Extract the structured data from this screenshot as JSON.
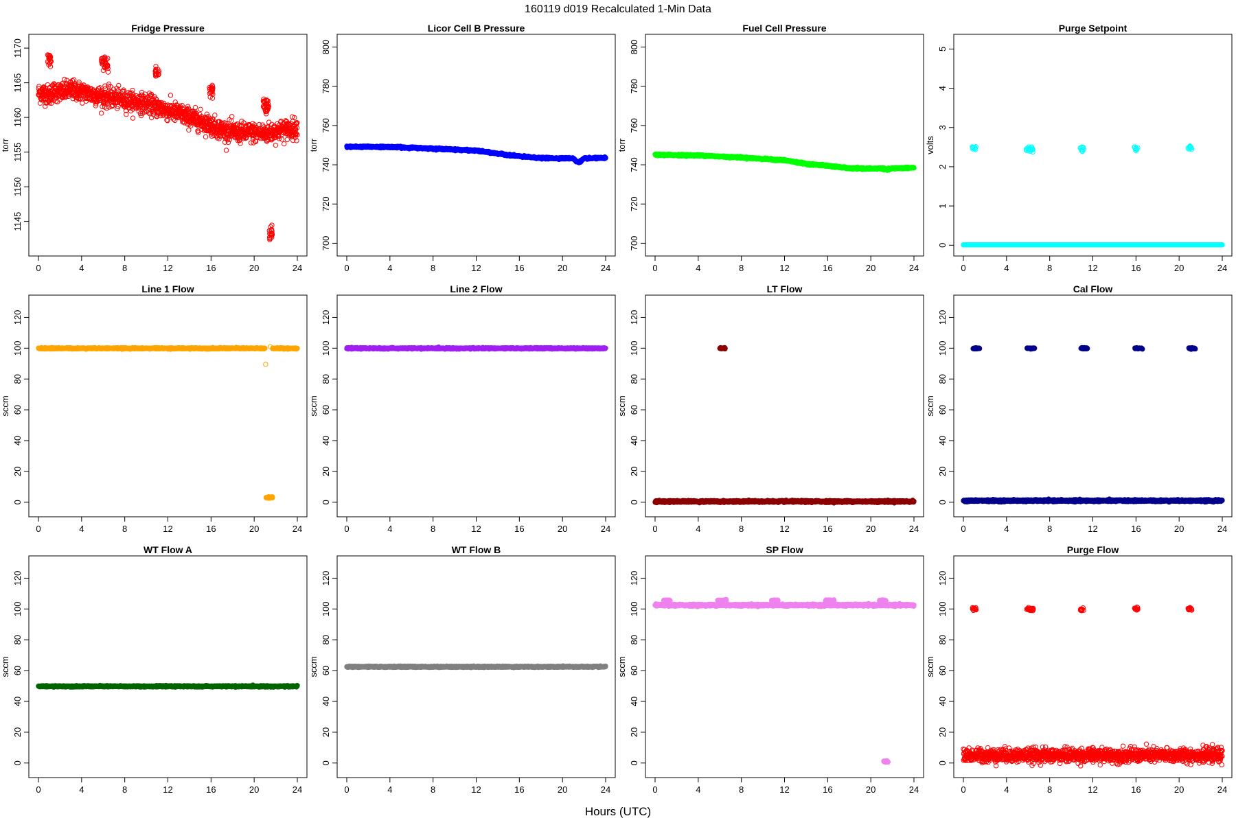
{
  "page_title": "160119    d019   Recalculated 1-Min Data",
  "x_axis_label": "Hours (UTC)",
  "chart_data": [
    {
      "type": "scatter",
      "title": "Fridge Pressure",
      "ylabel": "torr",
      "color": "#ff0000",
      "point_style": "open",
      "xlim": [
        0,
        24
      ],
      "ylim": [
        1141,
        1171
      ],
      "xticks": [
        0,
        4,
        8,
        12,
        16,
        20,
        24
      ],
      "yticks": [
        1145,
        1150,
        1155,
        1160,
        1165,
        1170
      ],
      "series": [
        {
          "name": "main",
          "points": [
            [
              0,
              1163.5
            ],
            [
              0.5,
              1163.5
            ],
            [
              1,
              1163.2
            ],
            [
              1.5,
              1163.8
            ],
            [
              2,
              1163.6
            ],
            [
              3,
              1164
            ],
            [
              4,
              1163.7
            ],
            [
              5,
              1163.3
            ],
            [
              6,
              1163
            ],
            [
              7,
              1162.8
            ],
            [
              8,
              1162.5
            ],
            [
              9,
              1162.2
            ],
            [
              10,
              1162
            ],
            [
              11,
              1161.5
            ],
            [
              12,
              1161
            ],
            [
              13,
              1160.6
            ],
            [
              14,
              1160
            ],
            [
              15,
              1159.5
            ],
            [
              16,
              1158.9
            ],
            [
              17,
              1158.2
            ],
            [
              18,
              1157.9
            ],
            [
              19,
              1157.8
            ],
            [
              20,
              1157.8
            ],
            [
              21,
              1157.7
            ],
            [
              22,
              1158
            ],
            [
              23,
              1158.3
            ],
            [
              24,
              1158.5
            ]
          ],
          "scatter": 0.7
        },
        {
          "name": "excursions",
          "points": [
            [
              1,
              1168.3
            ],
            [
              6,
              1168.2
            ],
            [
              6.3,
              1167.5
            ],
            [
              11,
              1166.4
            ],
            [
              16,
              1163.7
            ],
            [
              21,
              1162
            ],
            [
              21.2,
              1161.5
            ],
            [
              21.5,
              1143.5
            ]
          ],
          "scatter": 0.5,
          "count": 18
        }
      ]
    },
    {
      "type": "scatter",
      "title": "Licor Cell B Pressure",
      "ylabel": "torr",
      "color": "#0000ff",
      "point_style": "filled",
      "xlim": [
        0,
        24
      ],
      "ylim": [
        697,
        803
      ],
      "xticks": [
        0,
        4,
        8,
        12,
        16,
        20,
        24
      ],
      "yticks": [
        700,
        720,
        740,
        760,
        780,
        800
      ],
      "series": [
        {
          "name": "main",
          "points": [
            [
              0,
              749.2
            ],
            [
              4,
              749.1
            ],
            [
              8,
              748.3
            ],
            [
              12,
              747.2
            ],
            [
              14,
              745.7
            ],
            [
              16,
              744.3
            ],
            [
              18,
              743.4
            ],
            [
              20,
              743.3
            ],
            [
              21,
              743.3
            ],
            [
              21.3,
              741.5
            ],
            [
              21.6,
              741.5
            ],
            [
              22,
              743.2
            ],
            [
              24,
              743.5
            ]
          ],
          "scatter": 0.2
        }
      ]
    },
    {
      "type": "scatter",
      "title": "Fuel Cell Pressure",
      "ylabel": "torr",
      "color": "#00ff00",
      "point_style": "filled",
      "xlim": [
        0,
        24
      ],
      "ylim": [
        697,
        803
      ],
      "xticks": [
        0,
        4,
        8,
        12,
        16,
        20,
        24
      ],
      "yticks": [
        700,
        720,
        740,
        760,
        780,
        800
      ],
      "series": [
        {
          "name": "main",
          "points": [
            [
              0,
              745.1
            ],
            [
              4,
              744.8
            ],
            [
              8,
              743.7
            ],
            [
              12,
              742.3
            ],
            [
              14,
              740.5
            ],
            [
              16,
              739.5
            ],
            [
              18,
              738.2
            ],
            [
              20,
              738
            ],
            [
              21,
              738.2
            ],
            [
              21.5,
              737.5
            ],
            [
              22,
              738.2
            ],
            [
              24,
              738.5
            ]
          ],
          "scatter": 0.2
        }
      ]
    },
    {
      "type": "scatter",
      "title": "Purge Setpoint",
      "ylabel": "volts",
      "color": "#00ffff",
      "point_style": "open",
      "xlim": [
        0,
        24
      ],
      "ylim": [
        -0.1,
        5.2
      ],
      "xticks": [
        0,
        4,
        8,
        12,
        16,
        20,
        24
      ],
      "yticks": [
        0,
        1,
        2,
        3,
        4,
        5
      ],
      "series": [
        {
          "name": "baseline",
          "points": [
            [
              0,
              0.01
            ],
            [
              24,
              0.01
            ]
          ],
          "scatter": 0,
          "filled": true
        },
        {
          "name": "setpoint",
          "points": [
            [
              1,
              2.46
            ],
            [
              6,
              2.45
            ],
            [
              6.3,
              2.43
            ],
            [
              11,
              2.46
            ],
            [
              16,
              2.46
            ],
            [
              21,
              2.46
            ]
          ],
          "scatter": 0.03,
          "count": 10
        }
      ]
    },
    {
      "type": "scatter",
      "title": "Line 1 Flow",
      "ylabel": "sccm",
      "color": "#ffa500",
      "point_style": "filled",
      "xlim": [
        0,
        24
      ],
      "ylim": [
        -5,
        130
      ],
      "xticks": [
        0,
        4,
        8,
        12,
        16,
        20,
        24
      ],
      "yticks": [
        0,
        20,
        40,
        60,
        80,
        100,
        120
      ],
      "series": [
        {
          "name": "main",
          "points": [
            [
              0,
              99.9
            ],
            [
              21,
              99.9
            ]
          ],
          "scatter": 0.2
        },
        {
          "name": "main-2",
          "points": [
            [
              21.7,
              99.9
            ],
            [
              24,
              99.9
            ]
          ],
          "scatter": 0.2
        },
        {
          "name": "low",
          "points": [
            [
              21.1,
              3
            ],
            [
              21.7,
              3
            ]
          ],
          "scatter": 0.2
        },
        {
          "name": "outlier",
          "points": [
            [
              21.1,
              89.5
            ],
            [
              21.6,
              101
            ]
          ],
          "scatter": 0,
          "count": 1,
          "open": true
        }
      ]
    },
    {
      "type": "scatter",
      "title": "Line 2 Flow",
      "ylabel": "sccm",
      "color": "#a020f0",
      "point_style": "filled",
      "xlim": [
        0,
        24
      ],
      "ylim": [
        -5,
        130
      ],
      "xticks": [
        0,
        4,
        8,
        12,
        16,
        20,
        24
      ],
      "yticks": [
        0,
        20,
        40,
        60,
        80,
        100,
        120
      ],
      "series": [
        {
          "name": "main",
          "points": [
            [
              0,
              99.9
            ],
            [
              24,
              99.9
            ]
          ],
          "scatter": 0.2
        }
      ]
    },
    {
      "type": "scatter",
      "title": "LT Flow",
      "ylabel": "sccm",
      "color": "#8b0000",
      "point_style": "filled",
      "xlim": [
        0,
        24
      ],
      "ylim": [
        -5,
        130
      ],
      "xticks": [
        0,
        4,
        8,
        12,
        16,
        20,
        24
      ],
      "yticks": [
        0,
        20,
        40,
        60,
        80,
        100,
        120
      ],
      "series": [
        {
          "name": "main",
          "points": [
            [
              0,
              0.5
            ],
            [
              24,
              0.5
            ]
          ],
          "scatter": 0.3
        },
        {
          "name": "spike",
          "points": [
            [
              6,
              99.9
            ],
            [
              6.5,
              99.9
            ]
          ],
          "scatter": 0.2
        }
      ]
    },
    {
      "type": "scatter",
      "title": "Cal Flow",
      "ylabel": "sccm",
      "color": "#00008b",
      "point_style": "filled",
      "xlim": [
        0,
        24
      ],
      "ylim": [
        -5,
        130
      ],
      "xticks": [
        0,
        4,
        8,
        12,
        16,
        20,
        24
      ],
      "yticks": [
        0,
        20,
        40,
        60,
        80,
        100,
        120
      ],
      "series": [
        {
          "name": "main",
          "points": [
            [
              0,
              1
            ],
            [
              24,
              1
            ]
          ],
          "scatter": 0.3
        },
        {
          "name": "cal-1",
          "points": [
            [
              0.9,
              99.9
            ],
            [
              1.5,
              99.9
            ]
          ],
          "scatter": 0.2
        },
        {
          "name": "cal-2",
          "points": [
            [
              5.9,
              99.9
            ],
            [
              6.6,
              99.9
            ]
          ],
          "scatter": 0.2
        },
        {
          "name": "cal-3",
          "points": [
            [
              10.9,
              99.9
            ],
            [
              11.5,
              99.9
            ]
          ],
          "scatter": 0.2
        },
        {
          "name": "cal-4",
          "points": [
            [
              15.9,
              99.9
            ],
            [
              16.6,
              99.9
            ]
          ],
          "scatter": 0.2
        },
        {
          "name": "cal-5",
          "points": [
            [
              20.9,
              99.9
            ],
            [
              21.5,
              99.9
            ]
          ],
          "scatter": 0.2
        }
      ]
    },
    {
      "type": "scatter",
      "title": "WT Flow A",
      "ylabel": "sccm",
      "color": "#006400",
      "point_style": "filled",
      "xlim": [
        0,
        24
      ],
      "ylim": [
        -5,
        130
      ],
      "xticks": [
        0,
        4,
        8,
        12,
        16,
        20,
        24
      ],
      "yticks": [
        0,
        20,
        40,
        60,
        80,
        100,
        120
      ],
      "series": [
        {
          "name": "main",
          "points": [
            [
              0,
              49.8
            ],
            [
              24,
              49.8
            ]
          ],
          "scatter": 0.2
        }
      ]
    },
    {
      "type": "scatter",
      "title": "WT Flow B",
      "ylabel": "sccm",
      "color": "#808080",
      "point_style": "filled",
      "xlim": [
        0,
        24
      ],
      "ylim": [
        -5,
        130
      ],
      "xticks": [
        0,
        4,
        8,
        12,
        16,
        20,
        24
      ],
      "yticks": [
        0,
        20,
        40,
        60,
        80,
        100,
        120
      ],
      "series": [
        {
          "name": "main",
          "points": [
            [
              0,
              62.5
            ],
            [
              24,
              62.5
            ]
          ],
          "scatter": 0.2
        }
      ]
    },
    {
      "type": "scatter",
      "title": "SP Flow",
      "ylabel": "sccm",
      "color": "#ee82ee",
      "point_style": "filled",
      "xlim": [
        0,
        24
      ],
      "ylim": [
        -5,
        130
      ],
      "xticks": [
        0,
        4,
        8,
        12,
        16,
        20,
        24
      ],
      "yticks": [
        0,
        20,
        40,
        60,
        80,
        100,
        120
      ],
      "series": [
        {
          "name": "main",
          "points": [
            [
              0,
              102.5
            ],
            [
              24,
              102.5
            ]
          ],
          "scatter": 0.3
        },
        {
          "name": "bump-1",
          "points": [
            [
              0.8,
              105.5
            ],
            [
              1.4,
              105.5
            ]
          ],
          "scatter": 0.2
        },
        {
          "name": "bump-2",
          "points": [
            [
              5.8,
              105.5
            ],
            [
              6.6,
              105.5
            ]
          ],
          "scatter": 0.2
        },
        {
          "name": "bump-3",
          "points": [
            [
              10.8,
              105.5
            ],
            [
              11.4,
              105.5
            ]
          ],
          "scatter": 0.2
        },
        {
          "name": "bump-4",
          "points": [
            [
              15.8,
              105.5
            ],
            [
              16.6,
              105.5
            ]
          ],
          "scatter": 0.2
        },
        {
          "name": "bump-5",
          "points": [
            [
              20.8,
              105.5
            ],
            [
              21.4,
              105.5
            ]
          ],
          "scatter": 0.2
        },
        {
          "name": "low",
          "points": [
            [
              21.2,
              1
            ],
            [
              21.6,
              1
            ]
          ],
          "scatter": 0.2
        }
      ]
    },
    {
      "type": "scatter",
      "title": "Purge Flow",
      "ylabel": "sccm",
      "color": "#ff0000",
      "point_style": "open",
      "xlim": [
        0,
        24
      ],
      "ylim": [
        -5,
        130
      ],
      "xticks": [
        0,
        4,
        8,
        12,
        16,
        20,
        24
      ],
      "yticks": [
        0,
        20,
        40,
        60,
        80,
        100,
        120
      ],
      "series": [
        {
          "name": "main",
          "points": [
            [
              0,
              5
            ],
            [
              24,
              5
            ]
          ],
          "scatter": 2.2
        },
        {
          "name": "purge",
          "points": [
            [
              1,
              100
            ],
            [
              6,
              100
            ],
            [
              6.3,
              99.8
            ],
            [
              11,
              99.9
            ],
            [
              16,
              100
            ],
            [
              21,
              99.9
            ]
          ],
          "scatter": 0.5,
          "count": 14
        }
      ]
    }
  ]
}
